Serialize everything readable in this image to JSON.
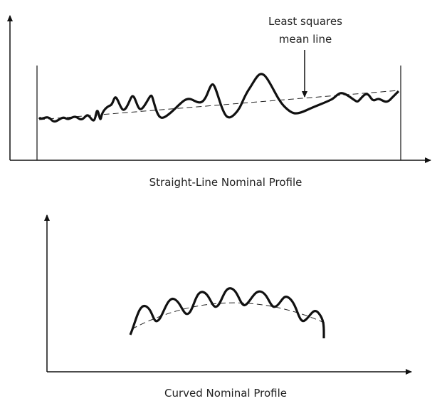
{
  "top_diagram": {
    "annotation": [
      "Least squares",
      "mean line"
    ],
    "caption": "Straight-Line Nominal Profile"
  },
  "bottom_diagram": {
    "caption": "Curved Nominal Profile"
  }
}
